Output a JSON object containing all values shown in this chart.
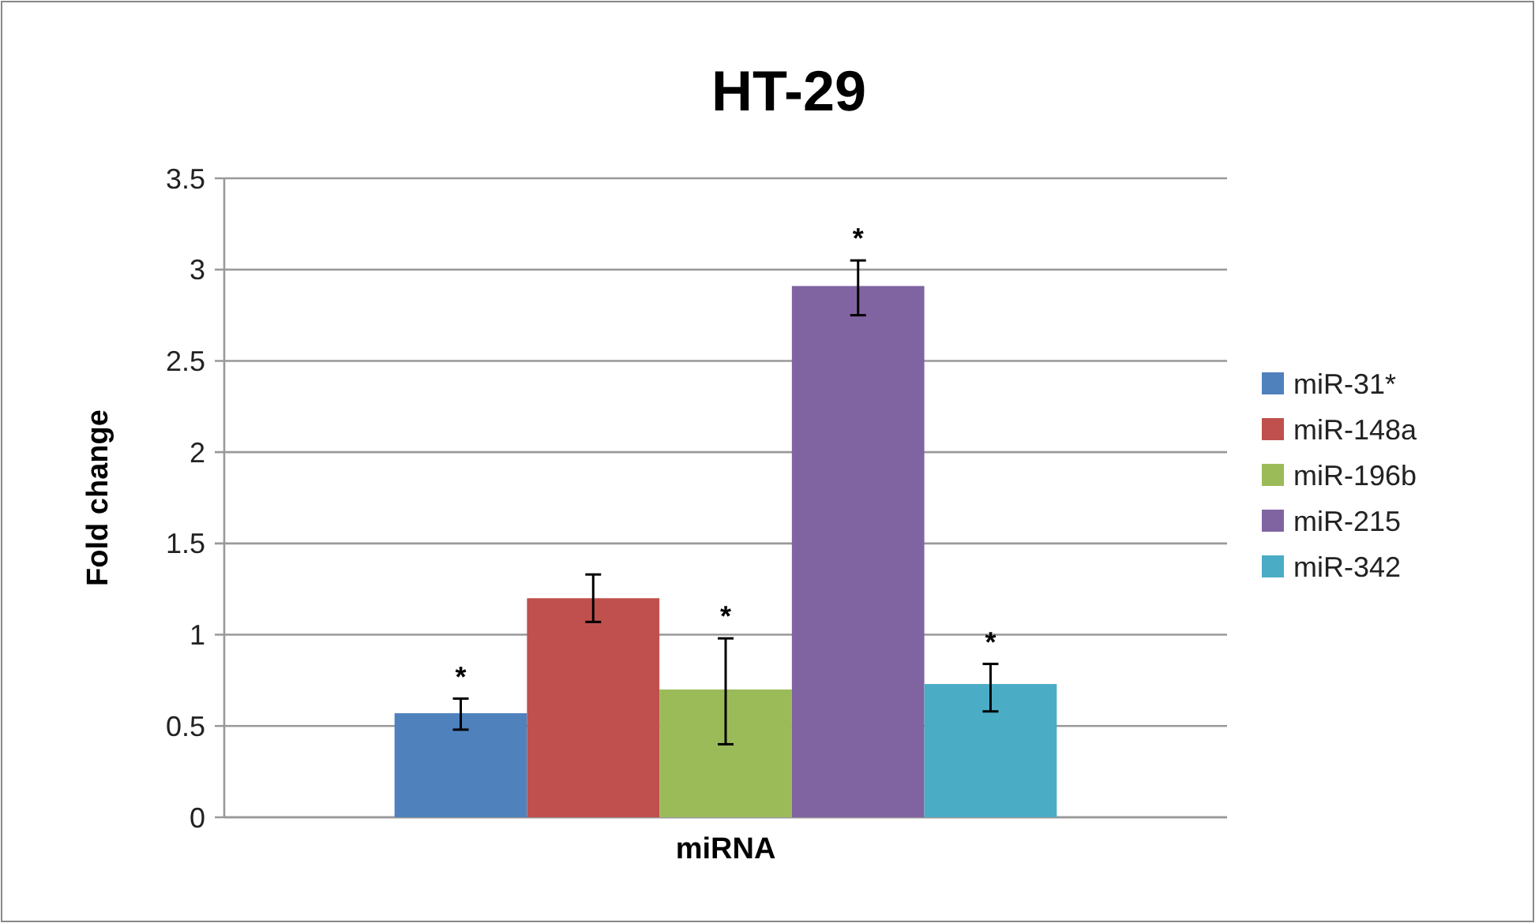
{
  "chart_data": {
    "type": "bar",
    "title": "HT-29",
    "ylabel": "Fold change",
    "categories": [
      "miRNA"
    ],
    "ylim": [
      0,
      3.5
    ],
    "yticks": [
      0,
      0.5,
      1,
      1.5,
      2,
      2.5,
      3,
      3.5
    ],
    "grid": "y",
    "legend": "right",
    "series": [
      {
        "name": "miR-31*",
        "color": "#4f81bd",
        "values": [
          0.57
        ],
        "errors": [
          [
            0.48,
            0.65
          ]
        ],
        "value_labels": [
          "*"
        ]
      },
      {
        "name": "miR-148a",
        "color": "#c0504d",
        "values": [
          1.2
        ],
        "errors": [
          [
            1.07,
            1.33
          ]
        ],
        "value_labels": [
          null
        ]
      },
      {
        "name": "miR-196b",
        "color": "#9bbb59",
        "values": [
          0.7
        ],
        "errors": [
          [
            0.4,
            0.98
          ]
        ],
        "value_labels": [
          "*"
        ]
      },
      {
        "name": "miR-215",
        "color": "#8064a2",
        "values": [
          2.91
        ],
        "errors": [
          [
            2.75,
            3.05
          ]
        ],
        "value_labels": [
          "*"
        ]
      },
      {
        "name": "miR-342",
        "color": "#4bacc6",
        "values": [
          0.73
        ],
        "errors": [
          [
            0.58,
            0.84
          ]
        ],
        "value_labels": [
          "*"
        ]
      }
    ]
  }
}
